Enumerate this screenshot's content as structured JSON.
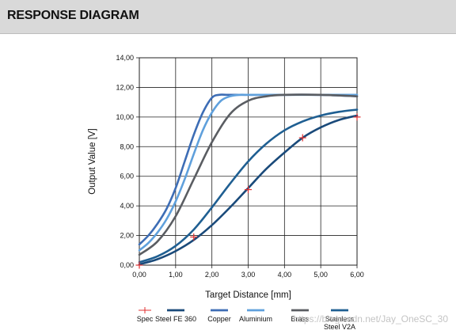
{
  "header": {
    "title": "RESPONSE DIAGRAM"
  },
  "watermark": "https://blog.csdn.net/Jay_OneSC_30",
  "chart_data": {
    "type": "line",
    "xlabel": "Target Distance  [mm]",
    "ylabel": "Output Value  [V]",
    "xlim": [
      0,
      6
    ],
    "ylim": [
      0,
      14
    ],
    "xticks": [
      "0,00",
      "1,00",
      "2,00",
      "3,00",
      "4,00",
      "5,00",
      "6,00"
    ],
    "yticks": [
      "0,00",
      "2,00",
      "4,00",
      "6,00",
      "8,00",
      "10,00",
      "12,00",
      "14,00"
    ],
    "grid": true,
    "legend_position": "bottom",
    "series": [
      {
        "name": "Spec",
        "color": "#e03030",
        "marker": "plus",
        "x": [
          0,
          1.5,
          3,
          4.5,
          6
        ],
        "y": [
          0,
          1.9,
          5.1,
          8.6,
          10.0
        ]
      },
      {
        "name": "Steel FE 360",
        "color": "#1a4a7a",
        "x": [
          0,
          0.5,
          1.0,
          1.5,
          2.0,
          2.5,
          3.0,
          3.5,
          4.0,
          4.5,
          5.0,
          5.5,
          6.0
        ],
        "y": [
          0.05,
          0.4,
          0.95,
          1.7,
          2.7,
          3.9,
          5.2,
          6.5,
          7.6,
          8.6,
          9.3,
          9.8,
          10.1
        ]
      },
      {
        "name": "Copper",
        "color": "#3d6db5",
        "x": [
          0,
          0.25,
          0.5,
          0.75,
          1.0,
          1.25,
          1.5,
          1.75,
          2.0,
          2.2,
          2.4,
          3.0,
          4.0,
          5.0,
          6.0
        ],
        "y": [
          1.4,
          2.0,
          2.8,
          3.8,
          5.2,
          7.0,
          8.8,
          10.3,
          11.3,
          11.5,
          11.5,
          11.5,
          11.5,
          11.5,
          11.4
        ]
      },
      {
        "name": "Aluminium",
        "color": "#5fa0dc",
        "x": [
          0,
          0.25,
          0.5,
          0.75,
          1.0,
          1.25,
          1.5,
          1.75,
          2.0,
          2.25,
          2.5,
          2.75,
          3.0,
          4.0,
          5.0,
          6.0
        ],
        "y": [
          1.0,
          1.5,
          2.2,
          3.1,
          4.3,
          5.8,
          7.5,
          9.1,
          10.3,
          11.1,
          11.4,
          11.5,
          11.5,
          11.5,
          11.5,
          11.5
        ]
      },
      {
        "name": "Brass",
        "color": "#5a5d62",
        "x": [
          0,
          0.5,
          1.0,
          1.5,
          2.0,
          2.5,
          3.0,
          3.5,
          4.0,
          5.0,
          6.0
        ],
        "y": [
          0.7,
          1.6,
          3.3,
          5.8,
          8.3,
          10.2,
          11.1,
          11.4,
          11.5,
          11.5,
          11.4
        ]
      },
      {
        "name": "Stainless Steel V2A",
        "color": "#1f5f92",
        "x": [
          0,
          0.5,
          1.0,
          1.5,
          2.0,
          2.5,
          3.0,
          3.5,
          4.0,
          4.5,
          5.0,
          5.5,
          6.0
        ],
        "y": [
          0.2,
          0.6,
          1.3,
          2.4,
          3.9,
          5.5,
          7.0,
          8.2,
          9.1,
          9.7,
          10.1,
          10.35,
          10.5
        ]
      }
    ]
  }
}
